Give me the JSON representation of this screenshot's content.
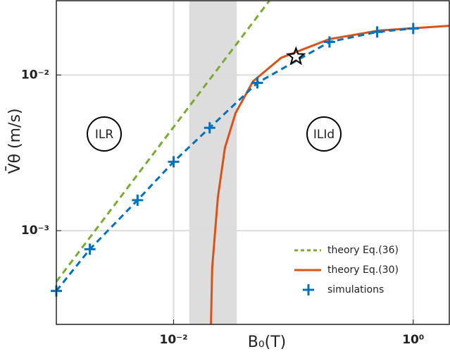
{
  "chart_data": {
    "type": "line",
    "xscale": "log",
    "yscale": "log",
    "grid": true,
    "xlabel": "B₀(T)",
    "ylabel": "V̄θ (m/s)",
    "xlim": [
      0.00105,
      2
    ],
    "ylim": [
      0.00025,
      0.03
    ],
    "xticks": [
      {
        "value": 0.01,
        "label": "10⁻²"
      },
      {
        "value": 1,
        "label": "10⁰"
      }
    ],
    "yticks": [
      {
        "value": 0.001,
        "label": "10⁻³"
      },
      {
        "value": 0.01,
        "label": "10⁻²"
      }
    ],
    "legend": "lower right",
    "shaded_x": [
      0.0135,
      0.0337
    ],
    "shade_color": "#dddddd",
    "series": [
      {
        "name": "theory Eq.(36)",
        "color": "#77ac30",
        "linestyle": "dashed",
        "marker": null,
        "x": [
          0.00105,
          0.063
        ],
        "values": [
          0.00047,
          0.03
        ]
      },
      {
        "name": "theory Eq.(30)",
        "color": "#d95319",
        "linestyle": "solid",
        "marker": null,
        "x": [
          0.0205,
          0.021,
          0.0234,
          0.0268,
          0.0329,
          0.046,
          0.079,
          0.2,
          0.52,
          2
        ],
        "values": [
          0.00025,
          0.00058,
          0.00163,
          0.0034,
          0.0057,
          0.0091,
          0.0129,
          0.017,
          0.0193,
          0.0207
        ]
      },
      {
        "name": "simulations",
        "color": "#0072bd",
        "linestyle": "dashed",
        "marker": "+",
        "x": [
          0.00105,
          0.002,
          0.005,
          0.01,
          0.02,
          0.05,
          0.2,
          0.5,
          1
        ],
        "values": [
          0.00041,
          0.00076,
          0.00157,
          0.00277,
          0.00458,
          0.0089,
          0.0163,
          0.0189,
          0.0199
        ]
      }
    ],
    "star": {
      "x": 0.105,
      "y": 0.0131
    },
    "annotations": [
      "ILR",
      "ILId"
    ]
  }
}
